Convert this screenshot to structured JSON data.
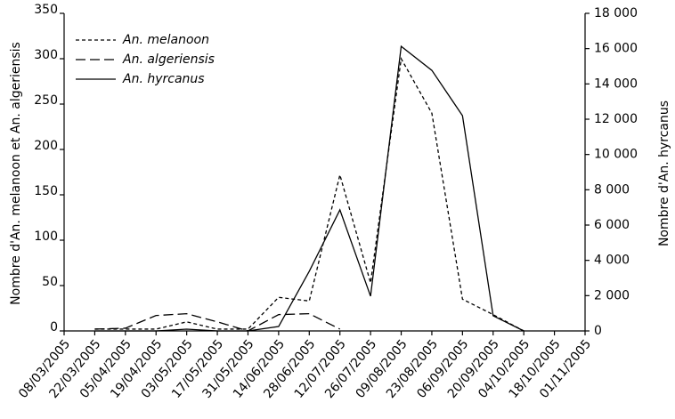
{
  "chart_data": {
    "type": "line",
    "categories": [
      "08/03/2005",
      "22/03/2005",
      "05/04/2005",
      "19/04/2005",
      "03/05/2005",
      "17/05/2005",
      "31/05/2005",
      "14/06/2005",
      "28/06/2005",
      "12/07/2005",
      "26/07/2005",
      "09/08/2005",
      "23/08/2005",
      "06/09/2005",
      "20/09/2005",
      "04/10/2005",
      "18/10/2005",
      "01/11/2005"
    ],
    "series": [
      {
        "name": "An. melanoon",
        "color": "#000000",
        "dash": "4,3",
        "values": [
          null,
          2,
          2,
          2,
          10,
          2,
          2,
          37,
          33,
          172,
          53,
          300,
          240,
          35,
          18,
          0,
          null,
          null
        ]
      },
      {
        "name": "An. algeriensis",
        "color": "#000000",
        "dash": "11,5",
        "values": [
          null,
          2,
          3,
          17,
          19,
          10,
          0,
          18,
          19,
          2,
          null,
          null,
          null,
          null,
          null,
          null,
          null,
          null
        ]
      },
      {
        "name": "An. hyrcanus",
        "color": "#000000",
        "dash": "none",
        "axis": "y2",
        "values": [
          null,
          0,
          0,
          0,
          100,
          0,
          0,
          250,
          3380,
          6860,
          1970,
          16130,
          14770,
          12200,
          860,
          0,
          null,
          null
        ]
      }
    ],
    "ylabel": "Nombre d'An. melanoon et An. algeriensis",
    "y2label": "Nombre d'An. hyrcanus",
    "ylim": [
      0,
      350
    ],
    "yticks": [
      0,
      50,
      100,
      150,
      200,
      250,
      300,
      350
    ],
    "y2lim": [
      0,
      18000
    ],
    "y2ticks": [
      0,
      {
        "value": 2000,
        "label": "2 000"
      },
      {
        "value": 4000,
        "label": "4 000"
      },
      {
        "value": 6000,
        "label": "6 000"
      },
      {
        "value": 8000,
        "label": "8 000"
      },
      {
        "value": 10000,
        "label": "10 000"
      },
      {
        "value": 12000,
        "label": "12 000"
      },
      {
        "value": 14000,
        "label": "14 000"
      },
      {
        "value": 16000,
        "label": "16 000"
      },
      {
        "value": 18000,
        "label": "18 000"
      }
    ],
    "legend": "upper left"
  }
}
